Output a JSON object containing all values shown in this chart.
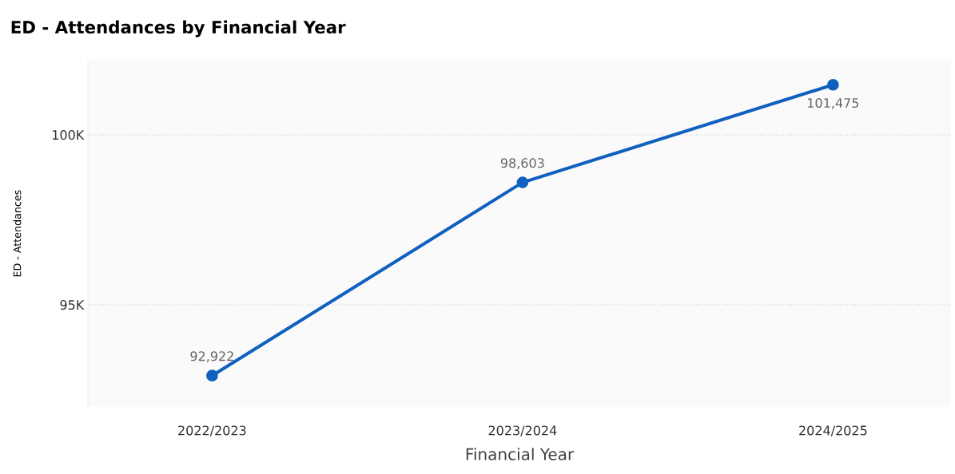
{
  "chart_data": {
    "type": "line",
    "title": "ED - Attendances by Financial Year",
    "xlabel": "Financial Year",
    "ylabel": "ED - Attendances",
    "categories": [
      "2022/2023",
      "2023/2024",
      "2024/2025"
    ],
    "series": [
      {
        "color": "#1060c0",
        "values": [
          92922,
          98603,
          101475
        ],
        "value_labels": [
          "92,922",
          "98,603",
          "101,475"
        ]
      }
    ],
    "ylim": [
      92000,
      102200
    ],
    "yticks": [
      {
        "value": 95000,
        "label": "95K"
      },
      {
        "value": 100000,
        "label": "100K"
      }
    ],
    "grid": "y",
    "marker": "circle",
    "line_style": "solid"
  }
}
